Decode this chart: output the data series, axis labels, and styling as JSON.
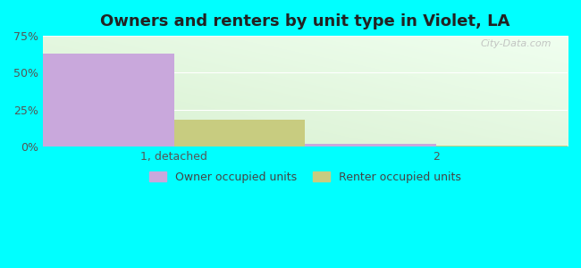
{
  "title": "Owners and renters by unit type in Violet, LA",
  "categories": [
    "1, detached",
    "2"
  ],
  "owner_values": [
    63.0,
    2.0
  ],
  "renter_values": [
    18.0,
    1.0
  ],
  "owner_color": "#c9a8dc",
  "renter_color": "#c8cc80",
  "ylim": [
    0,
    75
  ],
  "yticks": [
    0,
    25,
    50,
    75
  ],
  "ytick_labels": [
    "0%",
    "25%",
    "50%",
    "75%"
  ],
  "background_outer": "#00FFFF",
  "legend_owner": "Owner occupied units",
  "legend_renter": "Renter occupied units",
  "bar_width": 0.25,
  "watermark": "City-Data.com",
  "x_positions": [
    0.25,
    0.75
  ],
  "xlim": [
    0,
    1
  ]
}
